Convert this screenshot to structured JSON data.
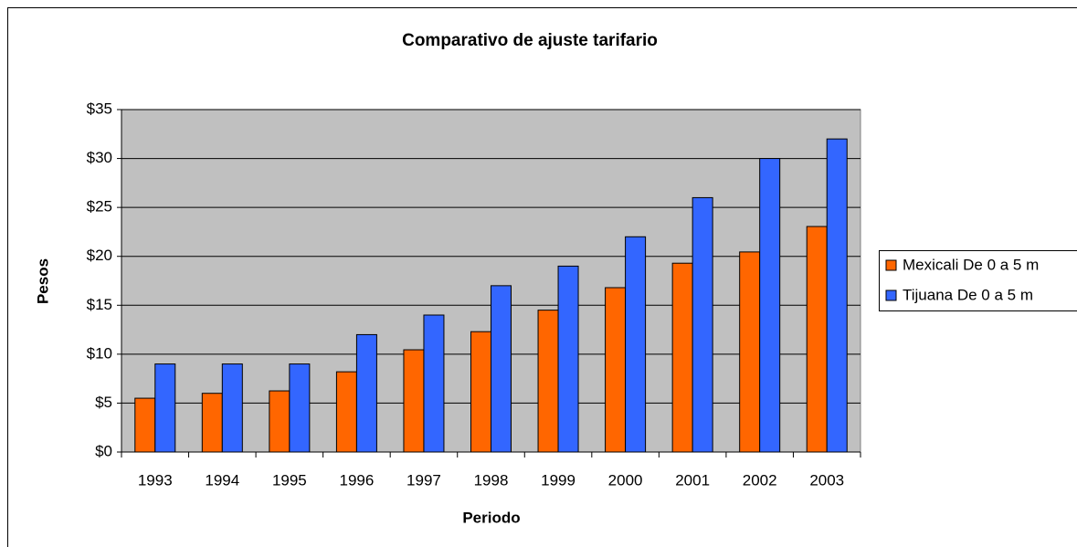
{
  "chart_data": {
    "type": "bar",
    "title": "Comparativo de ajuste tarifario",
    "x_label": "Periodo",
    "y_label": "Pesos",
    "categories": [
      "1993",
      "1994",
      "1995",
      "1996",
      "1997",
      "1998",
      "1999",
      "2000",
      "2001",
      "2002",
      "2003"
    ],
    "series": [
      {
        "name": "Mexicali De 0 a 5 m",
        "color": "#ff6600",
        "values": [
          5.5,
          6,
          6.25,
          8.2,
          10.45,
          12.3,
          14.5,
          16.8,
          19.3,
          20.45,
          23.05
        ]
      },
      {
        "name": "Tijuana De 0 a 5 m",
        "color": "#3366ff",
        "values": [
          9,
          9,
          9,
          12,
          14,
          17,
          19,
          22,
          26,
          30,
          32
        ]
      }
    ],
    "ylim": [
      0,
      35
    ],
    "yticks": [
      {
        "value": 0,
        "label": "$0"
      },
      {
        "value": 5,
        "label": "$5"
      },
      {
        "value": 10,
        "label": "$10"
      },
      {
        "value": 15,
        "label": "$15"
      },
      {
        "value": 20,
        "label": "$20"
      },
      {
        "value": 25,
        "label": "$25"
      },
      {
        "value": 30,
        "label": "$30"
      },
      {
        "value": 35,
        "label": "$35"
      }
    ],
    "grid": true,
    "legend": "right"
  }
}
